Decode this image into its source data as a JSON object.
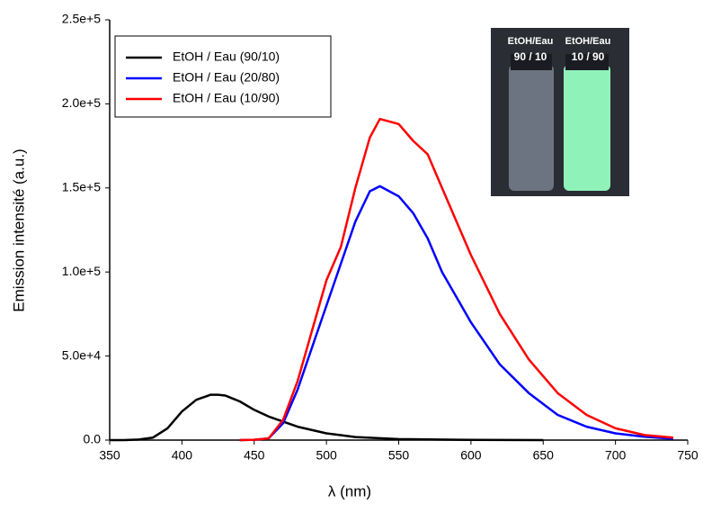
{
  "chart_data": {
    "type": "line",
    "x_label": "λ (nm)",
    "y_label": "Emission    intensité (a.u.)",
    "inset_labels": [
      "EtOH/Eau",
      "90 / 10",
      "EtOH/Eau",
      "10 / 90"
    ],
    "xlim": [
      350,
      750
    ],
    "xticks": [
      350,
      400,
      450,
      500,
      550,
      600,
      650,
      700,
      750
    ],
    "ylim": [
      0,
      250000
    ],
    "yticks": [
      {
        "value": 0,
        "label": "0.0"
      },
      {
        "value": 50000,
        "label": "5.0e+4"
      },
      {
        "value": 100000,
        "label": "1.0e+5"
      },
      {
        "value": 150000,
        "label": "1.5e+5"
      },
      {
        "value": 200000,
        "label": "2.0e+5"
      },
      {
        "value": 250000,
        "label": "2.5e+5"
      }
    ],
    "legend": "upper left",
    "series": [
      {
        "name": "EtOH / Eau (90/10)",
        "color": "#000000",
        "x": [
          350,
          360,
          370,
          380,
          390,
          400,
          410,
          420,
          425,
          430,
          440,
          450,
          460,
          480,
          500,
          520,
          550,
          600,
          650
        ],
        "values": [
          0,
          0,
          300,
          1500,
          7000,
          17000,
          24000,
          27000,
          27000,
          26500,
          23000,
          18000,
          14000,
          8000,
          4000,
          1800,
          600,
          100,
          0
        ]
      },
      {
        "name": "EtOH / Eau (20/80)",
        "color": "#0000ff",
        "x": [
          440,
          450,
          460,
          470,
          480,
          490,
          500,
          510,
          520,
          530,
          537,
          550,
          560,
          570,
          580,
          600,
          620,
          640,
          660,
          680,
          700,
          720,
          740
        ],
        "values": [
          0,
          200,
          1000,
          10000,
          30000,
          55000,
          80000,
          105000,
          130000,
          148000,
          151000,
          145000,
          135000,
          120000,
          100000,
          70000,
          45000,
          28000,
          15000,
          8000,
          4000,
          2000,
          800
        ]
      },
      {
        "name": "EtOH / Eau (10/90)",
        "color": "#ff0000",
        "x": [
          440,
          450,
          460,
          470,
          480,
          490,
          500,
          510,
          520,
          530,
          537,
          550,
          560,
          570,
          580,
          600,
          620,
          640,
          660,
          680,
          700,
          720,
          740
        ],
        "values": [
          0,
          200,
          1000,
          12000,
          35000,
          65000,
          95000,
          115000,
          150000,
          180000,
          191000,
          188000,
          178000,
          170000,
          150000,
          110000,
          75000,
          48000,
          28000,
          15000,
          7000,
          3000,
          1500
        ]
      }
    ]
  }
}
